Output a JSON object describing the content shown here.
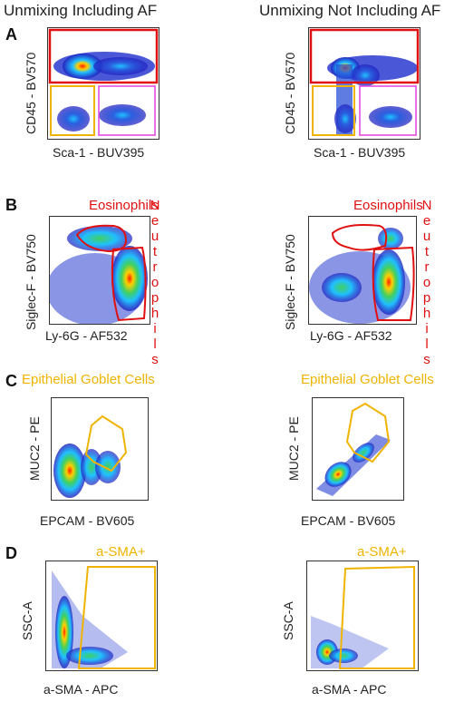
{
  "columns": {
    "left_title": "Unmixing Including AF",
    "right_title": "Unmixing Not Including AF"
  },
  "panels": {
    "A": {
      "letter": "A",
      "y_label": "CD45 - BV570",
      "x_label": "Sca-1 - BUV395"
    },
    "B": {
      "letter": "B",
      "y_label": "Siglec-F - BV750",
      "x_label": "Ly-6G - AF532",
      "gate_top": "Eosinophils",
      "gate_side_letters": [
        "N",
        "e",
        "u",
        "t",
        "r",
        "o",
        "p",
        "h",
        "i",
        "l",
        "s"
      ]
    },
    "C": {
      "letter": "C",
      "y_label": "MUC2 - PE",
      "x_label": "EPCAM - BV605",
      "gate_label": "Epithelial Goblet Cells"
    },
    "D": {
      "letter": "D",
      "y_label": "SSC-A",
      "x_label": "a-SMA - APC",
      "gate_label": "a-SMA+"
    }
  },
  "colors": {
    "red_gate": "#e01010",
    "gold_gate": "#f0b400",
    "magenta_gate": "#e040e0",
    "density_low": "#2020c0",
    "density_mid": "#20c0ff",
    "density_high": "#ff2000"
  }
}
